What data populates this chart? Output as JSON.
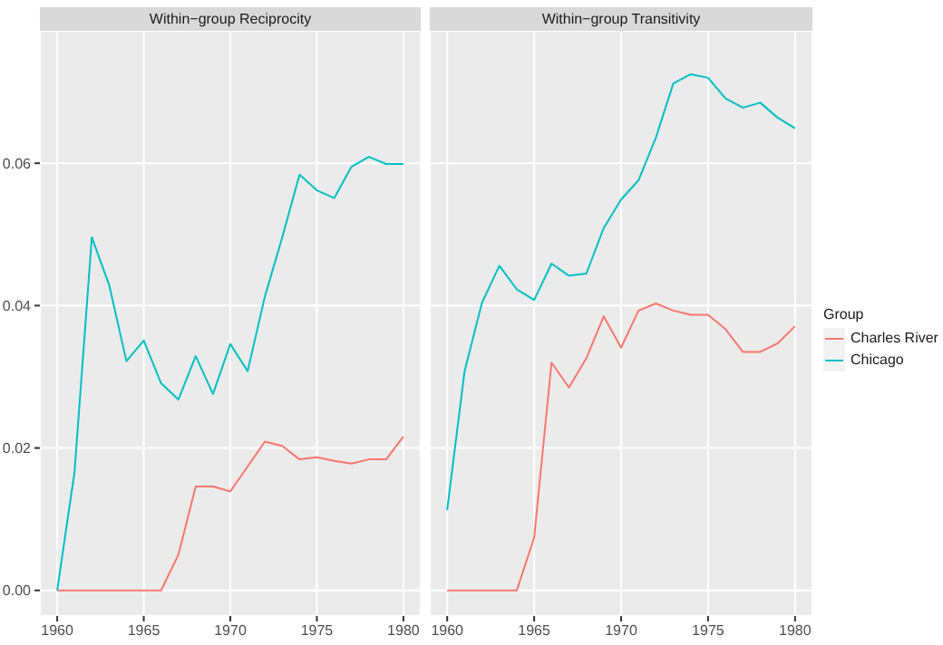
{
  "chart_data": [
    {
      "type": "line",
      "title": "Within−group Reciprocity",
      "x": [
        1960,
        1961,
        1962,
        1963,
        1964,
        1965,
        1966,
        1967,
        1968,
        1969,
        1970,
        1971,
        1972,
        1973,
        1974,
        1975,
        1976,
        1977,
        1978,
        1979,
        1980
      ],
      "series": [
        {
          "color": "#f8766d",
          "values": [
            0,
            0,
            0,
            0,
            0,
            0,
            0,
            0.005,
            0.0146,
            0.0146,
            0.0139,
            0.0174,
            0.0209,
            0.0203,
            0.0184,
            0.0187,
            0.0182,
            0.0178,
            0.0184,
            0.0184,
            0.0216
          ]
        },
        {
          "color": "#00bfc4",
          "values": [
            0,
            0.0166,
            0.0496,
            0.0429,
            0.0322,
            0.0351,
            0.0291,
            0.0268,
            0.0329,
            0.0276,
            0.0346,
            0.0308,
            0.0413,
            0.0496,
            0.0584,
            0.0562,
            0.0551,
            0.0595,
            0.0609,
            0.0599,
            0.0599
          ]
        }
      ],
      "xlim": [
        1959,
        1981
      ],
      "xticks": [
        1960,
        1965,
        1970,
        1975,
        1980
      ],
      "ylim": [
        -0.0036,
        0.0786
      ],
      "yticks": [
        {
          "value": 0,
          "label": "0.00"
        },
        {
          "value": 0.02,
          "label": "0.02"
        },
        {
          "value": 0.04,
          "label": "0.04"
        },
        {
          "value": 0.06,
          "label": "0.06"
        }
      ],
      "grid": true,
      "legend": false,
      "marker": "none"
    },
    {
      "type": "line",
      "title": "Within−group Transitivity",
      "x": [
        1960,
        1961,
        1962,
        1963,
        1964,
        1965,
        1966,
        1967,
        1968,
        1969,
        1970,
        1971,
        1972,
        1973,
        1974,
        1975,
        1976,
        1977,
        1978,
        1979,
        1980
      ],
      "series": [
        {
          "name": "Charles River",
          "color": "#f8766d",
          "values": [
            0,
            0,
            0,
            0,
            0,
            0.0074,
            0.032,
            0.0285,
            0.0326,
            0.0385,
            0.0341,
            0.0393,
            0.0403,
            0.0393,
            0.0387,
            0.0387,
            0.0367,
            0.0335,
            0.0335,
            0.0347,
            0.0371
          ]
        },
        {
          "name": "Chicago",
          "color": "#00bfc4",
          "values": [
            0.0113,
            0.0308,
            0.0404,
            0.0456,
            0.0423,
            0.0408,
            0.0459,
            0.0442,
            0.0445,
            0.0509,
            0.0549,
            0.0576,
            0.0636,
            0.0712,
            0.0725,
            0.072,
            0.0691,
            0.0678,
            0.0685,
            0.0664,
            0.0649
          ]
        }
      ],
      "xlim": [
        1959,
        1981
      ],
      "xticks": [
        1960,
        1965,
        1970,
        1975,
        1980
      ],
      "ylim": [
        -0.0036,
        0.0786
      ],
      "yticks": [
        0,
        0.02,
        0.04,
        0.06
      ],
      "grid": true,
      "legend": "right",
      "legend_title": "Group",
      "marker": "none",
      "tick_labels": "x"
    }
  ]
}
